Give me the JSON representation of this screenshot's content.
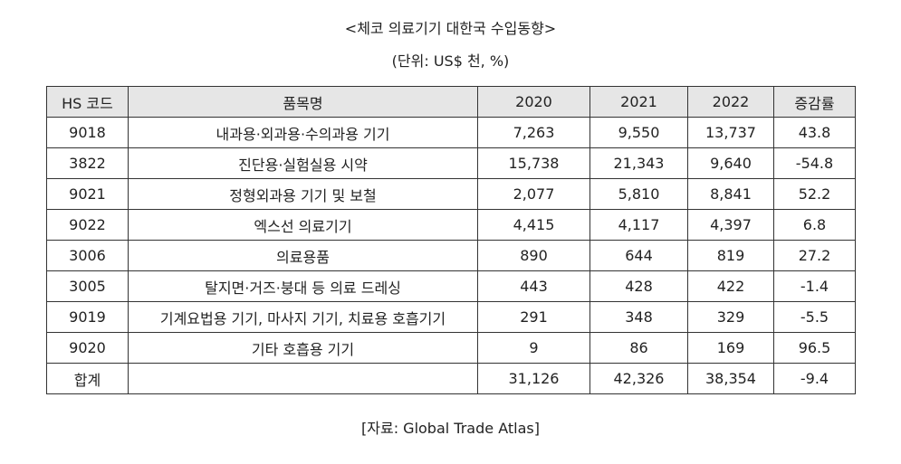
{
  "title": "<체코 의료기기 대한국 수입동향>",
  "unit": "(단위: US$ 천, %)",
  "table": {
    "headers": [
      "HS 코드",
      "품목명",
      "2020",
      "2021",
      "2022",
      "증감률"
    ],
    "rows": [
      [
        "9018",
        "내과용·외과용·수의과용 기기",
        "7,263",
        "9,550",
        "13,737",
        "43.8"
      ],
      [
        "3822",
        "진단용·실험실용 시약",
        "15,738",
        "21,343",
        "9,640",
        "-54.8"
      ],
      [
        "9021",
        "정형외과용 기기 및 보철",
        "2,077",
        "5,810",
        "8,841",
        "52.2"
      ],
      [
        "9022",
        "엑스선 의료기기",
        "4,415",
        "4,117",
        "4,397",
        "6.8"
      ],
      [
        "3006",
        "의료용품",
        "890",
        "644",
        "819",
        "27.2"
      ],
      [
        "3005",
        "탈지면·거즈·붕대 등 의료 드레싱",
        "443",
        "428",
        "422",
        "-1.4"
      ],
      [
        "9019",
        "기계요법용 기기, 마사지 기기, 치료용 호흡기기",
        "291",
        "348",
        "329",
        "-5.5"
      ],
      [
        "9020",
        "기타 호흡용 기기",
        "9",
        "86",
        "169",
        "96.5"
      ],
      [
        "합계",
        "",
        "31,126",
        "42,326",
        "38,354",
        "-9.4"
      ]
    ]
  },
  "source": "[자료: Global Trade Atlas]"
}
